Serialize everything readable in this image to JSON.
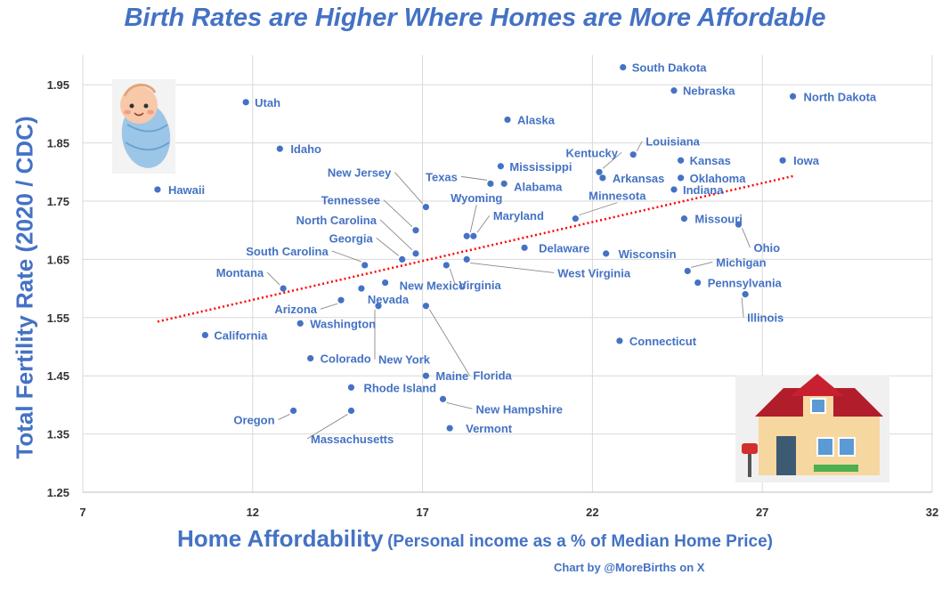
{
  "title": "Birth Rates are Higher Where Homes are More Affordable",
  "credit": "Chart by @MoreBirths on X",
  "colors": {
    "accent": "#4472C4",
    "trendline": "#FF0000",
    "grid": "#D9D9D9"
  },
  "icons": {
    "top_left": "baby-icon",
    "bottom_right": "house-icon"
  },
  "chart_data": {
    "type": "scatter",
    "title": "Birth Rates are Higher Where Homes are More Affordable",
    "xlabel": "Home Affordability",
    "xlabel_sub": "(Personal income as a % of Median Home Price)",
    "ylabel": "Total Fertility Rate (2020 / CDC)",
    "xlim": [
      7,
      32
    ],
    "ylim": [
      1.25,
      1.98
    ],
    "xticks": [
      "7",
      "12",
      "17",
      "22",
      "27",
      "32"
    ],
    "yticks": [
      "1.25",
      "1.35",
      "1.45",
      "1.55",
      "1.65",
      "1.75",
      "1.85",
      "1.95"
    ],
    "grid": true,
    "trendline": {
      "style": "dotted",
      "color": "#FF0000",
      "x": [
        9.2,
        27.9
      ],
      "y": [
        1.543,
        1.793
      ]
    },
    "points": [
      {
        "label": "South Dakota",
        "x": 22.9,
        "y": 1.98
      },
      {
        "label": "Nebraska",
        "x": 24.4,
        "y": 1.94
      },
      {
        "label": "North Dakota",
        "x": 27.9,
        "y": 1.93
      },
      {
        "label": "Utah",
        "x": 11.8,
        "y": 1.92
      },
      {
        "label": "Alaska",
        "x": 19.5,
        "y": 1.89
      },
      {
        "label": "Idaho",
        "x": 12.8,
        "y": 1.84
      },
      {
        "label": "Louisiana",
        "x": 23.2,
        "y": 1.83
      },
      {
        "label": "Kansas",
        "x": 24.6,
        "y": 1.82
      },
      {
        "label": "Iowa",
        "x": 27.6,
        "y": 1.82
      },
      {
        "label": "Mississippi",
        "x": 19.3,
        "y": 1.81
      },
      {
        "label": "Kentucky",
        "x": 22.2,
        "y": 1.8
      },
      {
        "label": "Arkansas",
        "x": 22.3,
        "y": 1.79
      },
      {
        "label": "Oklahoma",
        "x": 24.6,
        "y": 1.79
      },
      {
        "label": "Texas",
        "x": 19.0,
        "y": 1.78
      },
      {
        "label": "Alabama",
        "x": 19.4,
        "y": 1.78
      },
      {
        "label": "Hawaii",
        "x": 9.2,
        "y": 1.77
      },
      {
        "label": "Indiana",
        "x": 24.4,
        "y": 1.77
      },
      {
        "label": "New Jersey",
        "x": 17.1,
        "y": 1.74
      },
      {
        "label": "Minnesota",
        "x": 21.5,
        "y": 1.72
      },
      {
        "label": "Missouri",
        "x": 24.7,
        "y": 1.72
      },
      {
        "label": "Ohio",
        "x": 26.3,
        "y": 1.71
      },
      {
        "label": "Tennessee",
        "x": 16.8,
        "y": 1.7
      },
      {
        "label": "Wyoming",
        "x": 18.3,
        "y": 1.69
      },
      {
        "label": "Maryland",
        "x": 18.5,
        "y": 1.69
      },
      {
        "label": "Delaware",
        "x": 20.0,
        "y": 1.67
      },
      {
        "label": "North Carolina",
        "x": 16.8,
        "y": 1.66
      },
      {
        "label": "Wisconsin",
        "x": 22.4,
        "y": 1.66
      },
      {
        "label": "Georgia",
        "x": 16.4,
        "y": 1.65
      },
      {
        "label": "West Virginia",
        "x": 18.3,
        "y": 1.65
      },
      {
        "label": "South Carolina",
        "x": 15.3,
        "y": 1.64
      },
      {
        "label": "Virginia",
        "x": 17.7,
        "y": 1.64
      },
      {
        "label": "Michigan",
        "x": 24.8,
        "y": 1.63
      },
      {
        "label": "Montana",
        "x": 12.9,
        "y": 1.6
      },
      {
        "label": "New Mexico",
        "x": 15.9,
        "y": 1.61
      },
      {
        "label": "Nevada",
        "x": 15.2,
        "y": 1.6
      },
      {
        "label": "Pennsylvania",
        "x": 25.1,
        "y": 1.61
      },
      {
        "label": "Illinois",
        "x": 26.5,
        "y": 1.59
      },
      {
        "label": "Arizona",
        "x": 14.6,
        "y": 1.58
      },
      {
        "label": "New York",
        "x": 15.7,
        "y": 1.57
      },
      {
        "label": "Florida",
        "x": 17.1,
        "y": 1.57
      },
      {
        "label": "Washington",
        "x": 13.4,
        "y": 1.54
      },
      {
        "label": "California",
        "x": 10.6,
        "y": 1.52
      },
      {
        "label": "Connecticut",
        "x": 22.8,
        "y": 1.51
      },
      {
        "label": "Colorado",
        "x": 13.7,
        "y": 1.48
      },
      {
        "label": "Maine",
        "x": 17.1,
        "y": 1.45
      },
      {
        "label": "Rhode Island",
        "x": 14.9,
        "y": 1.43
      },
      {
        "label": "New Hampshire",
        "x": 17.6,
        "y": 1.41
      },
      {
        "label": "Oregon",
        "x": 13.2,
        "y": 1.39
      },
      {
        "label": "Massachusetts",
        "x": 14.9,
        "y": 1.39
      },
      {
        "label": "Vermont",
        "x": 17.8,
        "y": 1.36
      }
    ]
  }
}
